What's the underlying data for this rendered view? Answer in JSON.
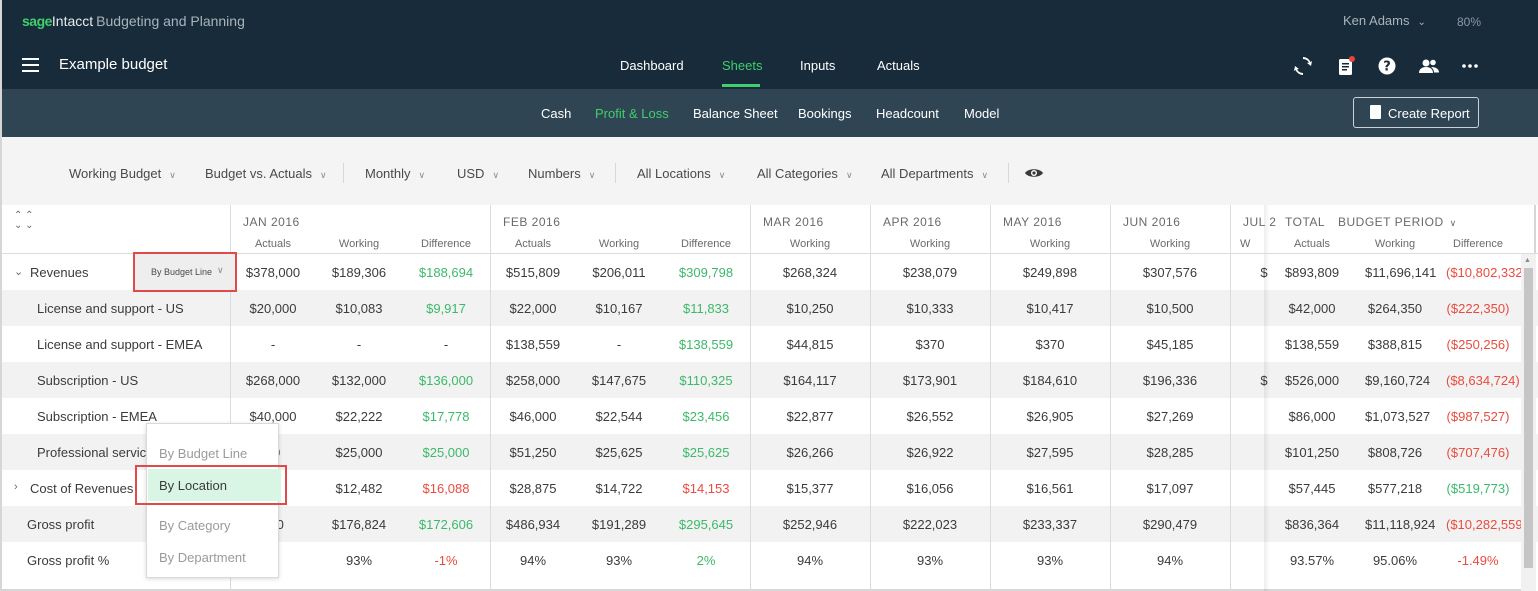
{
  "app": {
    "brand_sage": "sage",
    "brand_intacct": "Intacct",
    "brand_product": "Budgeting and Planning",
    "user_name": "Ken Adams",
    "zoom": "80%",
    "page_title": "Example budget"
  },
  "main_nav": [
    "Dashboard",
    "Sheets",
    "Inputs",
    "Actuals"
  ],
  "main_nav_active": "Sheets",
  "top_icons": [
    "refresh-icon",
    "clipboard-icon",
    "help-icon",
    "users-icon",
    "more-icon"
  ],
  "sub_nav": [
    "Cash",
    "Profit & Loss",
    "Balance Sheet",
    "Bookings",
    "Headcount",
    "Model"
  ],
  "sub_nav_active": "Profit & Loss",
  "create_report_label": "Create Report",
  "filters": [
    "Working Budget",
    "Budget vs. Actuals",
    "Monthly",
    "USD",
    "Numbers",
    "All Locations",
    "All Categories",
    "All Departments"
  ],
  "months": [
    "JAN 2016",
    "FEB 2016",
    "MAR 2016",
    "APR 2016",
    "MAY 2016",
    "JUN 2016",
    "JUL 2"
  ],
  "total_label": "TOTAL",
  "budget_period_label": "BUDGET PERIOD",
  "col_headers": {
    "jan": [
      "Actuals",
      "Working",
      "Difference"
    ],
    "feb": [
      "Actuals",
      "Working",
      "Difference"
    ],
    "mar": "Working",
    "apr": "Working",
    "may": "Working",
    "jun": "Working",
    "jul": "W",
    "total": [
      "Actuals",
      "Working",
      "Difference"
    ]
  },
  "grouping_select": "By Budget Line",
  "grouping_options": [
    "By Budget Line",
    "By Location",
    "By Category",
    "By Department"
  ],
  "grouping_highlighted": "By Location",
  "colors": {
    "positive": "#3cb96a",
    "negative": "#ea4b3f",
    "accent": "#3fcf6b",
    "header": "#172b3a"
  },
  "rows": [
    {
      "label": "Revenues",
      "toggle": "⌄",
      "jan": [
        "$378,000",
        "$189,306",
        "$188,694"
      ],
      "feb": [
        "$515,809",
        "$206,011",
        "$309,798"
      ],
      "mar": "$268,324",
      "apr": "$238,079",
      "may": "$249,898",
      "jun": "$307,576",
      "jul": "$",
      "total": [
        "$893,809",
        "$11,696,141",
        "($10,802,332)"
      ],
      "janDiff": "pos",
      "febDiff": "pos",
      "totDiff": "neg"
    },
    {
      "label": "License and support - US",
      "jan": [
        "$20,000",
        "$10,083",
        "$9,917"
      ],
      "feb": [
        "$22,000",
        "$10,167",
        "$11,833"
      ],
      "mar": "$10,250",
      "apr": "$10,333",
      "may": "$10,417",
      "jun": "$10,500",
      "jul": "",
      "total": [
        "$42,000",
        "$264,350",
        "($222,350)"
      ],
      "janDiff": "pos",
      "febDiff": "pos",
      "totDiff": "neg"
    },
    {
      "label": "License and support - EMEA",
      "jan": [
        "-",
        "-",
        "-"
      ],
      "feb": [
        "$138,559",
        "-",
        "$138,559"
      ],
      "mar": "$44,815",
      "apr": "$370",
      "may": "$370",
      "jun": "$45,185",
      "jul": "",
      "total": [
        "$138,559",
        "$388,815",
        "($250,256)"
      ],
      "janDiff": "",
      "febDiff": "pos",
      "totDiff": "neg"
    },
    {
      "label": "Subscription - US",
      "jan": [
        "$268,000",
        "$132,000",
        "$136,000"
      ],
      "feb": [
        "$258,000",
        "$147,675",
        "$110,325"
      ],
      "mar": "$164,117",
      "apr": "$173,901",
      "may": "$184,610",
      "jun": "$196,336",
      "jul": "$",
      "total": [
        "$526,000",
        "$9,160,724",
        "($8,634,724)"
      ],
      "janDiff": "pos",
      "febDiff": "pos",
      "totDiff": "neg"
    },
    {
      "label": "Subscription - EMEA",
      "jan": [
        "$40,000",
        "$22,222",
        "$17,778"
      ],
      "feb": [
        "$46,000",
        "$22,544",
        "$23,456"
      ],
      "mar": "$22,877",
      "apr": "$26,552",
      "may": "$26,905",
      "jun": "$27,269",
      "jul": "",
      "total": [
        "$86,000",
        "$1,073,527",
        "($987,527)"
      ],
      "janDiff": "pos",
      "febDiff": "pos",
      "totDiff": "neg"
    },
    {
      "label": "Professional service",
      "jan": [
        "00",
        "$25,000",
        "$25,000"
      ],
      "feb": [
        "$51,250",
        "$25,625",
        "$25,625"
      ],
      "mar": "$26,266",
      "apr": "$26,922",
      "may": "$27,595",
      "jun": "$28,285",
      "jul": "",
      "total": [
        "$101,250",
        "$808,726",
        "($707,476)"
      ],
      "janDiff": "pos",
      "febDiff": "pos",
      "totDiff": "neg"
    },
    {
      "label": "Cost of Revenues",
      "toggle": "›",
      "jan": [
        "70",
        "$12,482",
        "$16,088"
      ],
      "feb": [
        "$28,875",
        "$14,722",
        "$14,153"
      ],
      "mar": "$15,377",
      "apr": "$16,056",
      "may": "$16,561",
      "jun": "$17,097",
      "jul": "",
      "total": [
        "$57,445",
        "$577,218",
        "($519,773)"
      ],
      "janDiff": "neg",
      "febDiff": "neg",
      "totDiff": "pos"
    },
    {
      "label": "Gross profit",
      "jan": [
        "430",
        "$176,824",
        "$172,606"
      ],
      "feb": [
        "$486,934",
        "$191,289",
        "$295,645"
      ],
      "mar": "$252,946",
      "apr": "$222,023",
      "may": "$233,337",
      "jun": "$290,479",
      "jul": "",
      "total": [
        "$836,364",
        "$11,118,924",
        "($10,282,559)"
      ],
      "janDiff": "pos",
      "febDiff": "pos",
      "totDiff": "neg"
    },
    {
      "label": "Gross profit %",
      "jan": [
        "%",
        "93%",
        "-1%"
      ],
      "feb": [
        "94%",
        "93%",
        "2%"
      ],
      "mar": "94%",
      "apr": "93%",
      "may": "93%",
      "jun": "94%",
      "jul": "",
      "total": [
        "93.57%",
        "95.06%",
        "-1.49%"
      ],
      "janDiff": "neg",
      "febDiff": "pos",
      "totDiff": "neg"
    }
  ]
}
